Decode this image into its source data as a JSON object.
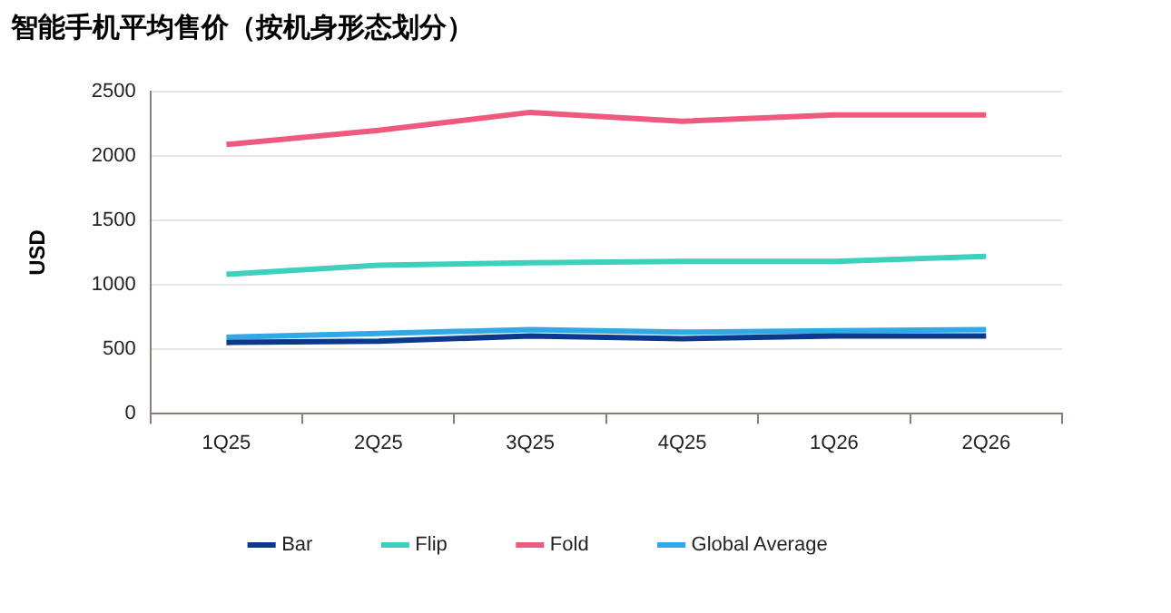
{
  "chart_data": {
    "type": "line",
    "title": "智能手机平均售价（按机身形态划分）",
    "ylabel": "USD",
    "categories": [
      "1Q25",
      "2Q25",
      "3Q25",
      "4Q25",
      "1Q26",
      "2Q26"
    ],
    "series": [
      {
        "name": "Bar",
        "color": "#0b3a8c",
        "values": [
          550,
          560,
          600,
          580,
          600,
          600
        ]
      },
      {
        "name": "Flip",
        "color": "#3dd0bd",
        "values": [
          1080,
          1150,
          1170,
          1180,
          1180,
          1220
        ]
      },
      {
        "name": "Fold",
        "color": "#ee5a7e",
        "values": [
          2090,
          2200,
          2340,
          2270,
          2320,
          2320
        ]
      },
      {
        "name": "Global Average",
        "color": "#31a9e6",
        "values": [
          590,
          620,
          650,
          630,
          640,
          650
        ]
      }
    ],
    "ylim": [
      0,
      2500
    ],
    "yticks": [
      0,
      500,
      1000,
      1500,
      2000,
      2500
    ],
    "grid": "y",
    "legend": "bottom",
    "marker": "none",
    "line_style": "solid"
  }
}
